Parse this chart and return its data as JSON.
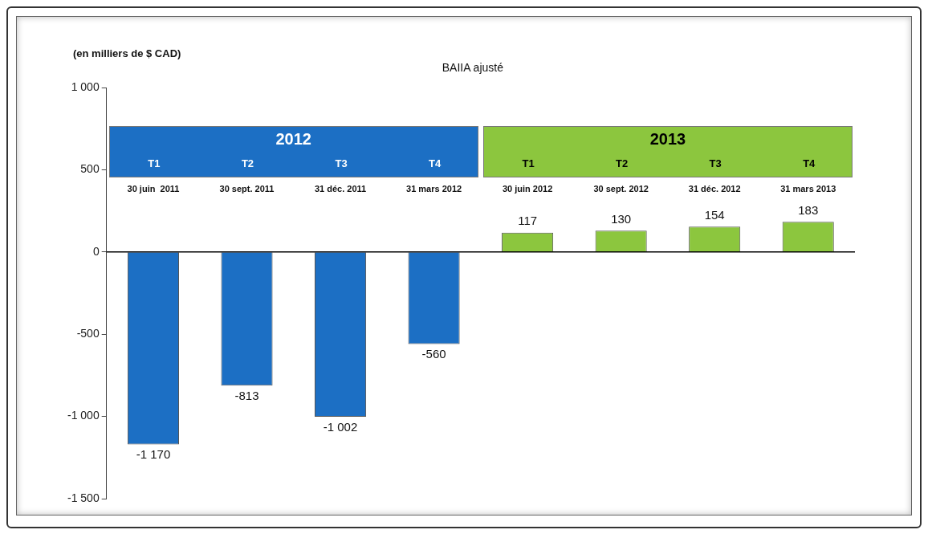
{
  "chart_data": {
    "type": "bar",
    "title": "BAIIA ajusté",
    "ylabel": "(en milliers de $ CAD)",
    "categories": [
      "30 juin  2011",
      "30 sept. 2011",
      "31 déc. 2011",
      "31 mars 2012",
      "30 juin 2012",
      "30 sept. 2012",
      "31 déc. 2012",
      "31 mars 2013"
    ],
    "values": [
      -1170,
      -813,
      -1002,
      -560,
      117,
      130,
      154,
      183
    ],
    "value_labels": [
      "-1 170",
      "-813",
      "-1 002",
      "-560",
      "117",
      "130",
      "154",
      "183"
    ],
    "colors": [
      "#1c6fc4",
      "#1c6fc4",
      "#1c6fc4",
      "#1c6fc4",
      "#8cc63e",
      "#8cc63e",
      "#8cc63e",
      "#8cc63e"
    ],
    "ylim": [
      -1500,
      1000
    ],
    "yticks": [
      {
        "value": -1500,
        "label": "-1 500"
      },
      {
        "value": -1000,
        "label": "-1 000"
      },
      -500,
      0,
      500,
      {
        "value": 1000,
        "label": "1 000"
      }
    ],
    "annotations": [
      "2012",
      "T1",
      "T2",
      "T3",
      "T4",
      "2013",
      "T1",
      "T2",
      "T3",
      "T4"
    ],
    "legend": false
  }
}
